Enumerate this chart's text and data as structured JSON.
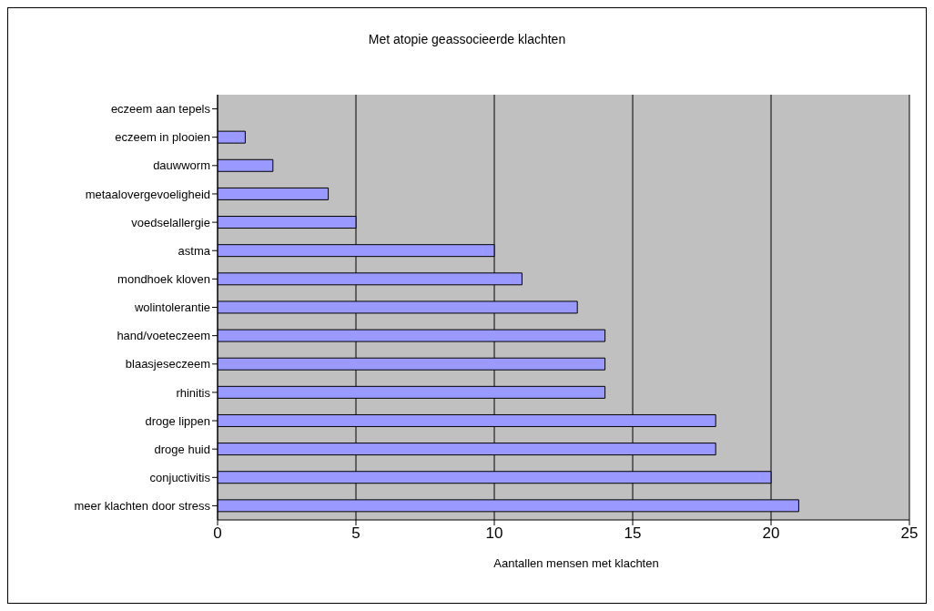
{
  "chart_data": {
    "type": "bar",
    "orientation": "horizontal",
    "title": "Met atopie geassocieerde klachten",
    "xlabel": "Aantallen mensen met klachten",
    "categories": [
      "eczeem aan tepels",
      "eczeem in plooien",
      "dauwworm",
      "metaalovergevoeligheid",
      "voedselallergie",
      "astma",
      "mondhoek kloven",
      "wolintolerantie",
      "hand/voeteczeem",
      "blaasjeseczeem",
      "rhinitis",
      "droge lippen",
      "droge huid",
      "conjuctivitis",
      "meer klachten door stress"
    ],
    "values": [
      0,
      1,
      2,
      4,
      5,
      10,
      11,
      13,
      14,
      14,
      14,
      18,
      18,
      20,
      21
    ],
    "color": "#9999ff",
    "xlim": [
      0,
      25
    ],
    "xticks": [
      0,
      5,
      10,
      15,
      20,
      25
    ],
    "grid": "x",
    "legend": false
  }
}
